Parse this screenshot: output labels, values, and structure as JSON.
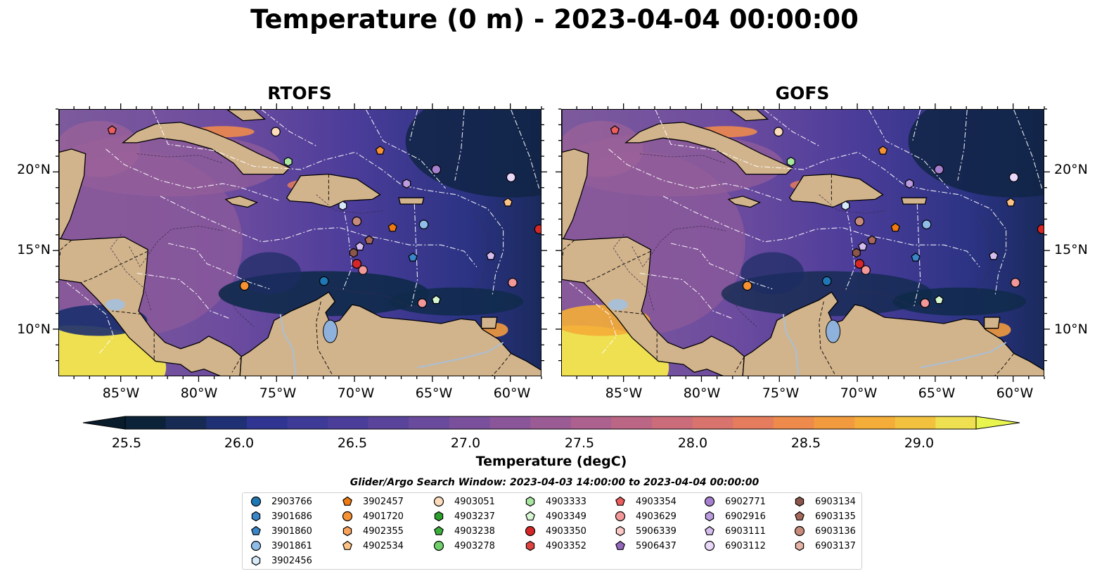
{
  "title": "Temperature (0 m) - 2023-04-04 00:00:00",
  "panels": [
    {
      "title": "RTOFS"
    },
    {
      "title": "GOFS"
    }
  ],
  "axes": {
    "x_ticks": [
      "85°W",
      "80°W",
      "75°W",
      "70°W",
      "65°W",
      "60°W"
    ],
    "y_ticks": [
      "20°N",
      "15°N",
      "10°N"
    ],
    "lon_range": [
      -89,
      -58
    ],
    "lat_range": [
      7,
      24
    ]
  },
  "colorbar": {
    "label": "Temperature (degC)",
    "ticks": [
      "25.5",
      "26.0",
      "26.5",
      "27.0",
      "27.5",
      "28.0",
      "28.5",
      "29.0"
    ],
    "range": [
      25.25,
      29.25
    ],
    "extend": "both",
    "colors": [
      "#0b2238",
      "#172a53",
      "#1f3075",
      "#2f3590",
      "#3d3a98",
      "#4b3e9a",
      "#5a449b",
      "#6a4a9c",
      "#7a509c",
      "#8b5599",
      "#9b5b95",
      "#ac618f",
      "#bc6686",
      "#cb6c7b",
      "#d9736d",
      "#e47c5d",
      "#ed8a4c",
      "#f29b3e",
      "#f4ad38",
      "#f2c23f",
      "#eee050"
    ],
    "under_color": "#081c2c",
    "over_color": "#e8f54f"
  },
  "search_window": "Glider/Argo Search Window: 2023-04-03 14:00:00 to 2023-04-04 00:00:00",
  "legend": {
    "entries": [
      {
        "label": "2903766",
        "color": "#1f77b4",
        "marker": "circle"
      },
      {
        "label": "3901686",
        "color": "#3a86c8",
        "marker": "hexagon"
      },
      {
        "label": "3901860",
        "color": "#3a86c8",
        "marker": "pentagon"
      },
      {
        "label": "3901861",
        "color": "#8fbde8",
        "marker": "circle"
      },
      {
        "label": "3902456",
        "color": "#d6eafc",
        "marker": "hexagon"
      },
      {
        "label": "3902457",
        "color": "#f07a10",
        "marker": "pentagon"
      },
      {
        "label": "4901720",
        "color": "#f79232",
        "marker": "circle"
      },
      {
        "label": "4902355",
        "color": "#f9a25a",
        "marker": "hexagon"
      },
      {
        "label": "4902534",
        "color": "#fcc285",
        "marker": "pentagon"
      },
      {
        "label": "4903051",
        "color": "#fddcbc",
        "marker": "circle"
      },
      {
        "label": "4903237",
        "color": "#2ca02c",
        "marker": "hexagon"
      },
      {
        "label": "4903238",
        "color": "#3cae3c",
        "marker": "pentagon"
      },
      {
        "label": "4903278",
        "color": "#6fcf6a",
        "marker": "circle"
      },
      {
        "label": "4903333",
        "color": "#a8e6a0",
        "marker": "hexagon"
      },
      {
        "label": "4903349",
        "color": "#d7f7d2",
        "marker": "pentagon"
      },
      {
        "label": "4903350",
        "color": "#d62728",
        "marker": "circle"
      },
      {
        "label": "4903352",
        "color": "#e0433f",
        "marker": "hexagon"
      },
      {
        "label": "4903354",
        "color": "#ec5d5e",
        "marker": "pentagon"
      },
      {
        "label": "4903629",
        "color": "#f29899",
        "marker": "circle"
      },
      {
        "label": "5906339",
        "color": "#fbc9c6",
        "marker": "hexagon"
      },
      {
        "label": "5906437",
        "color": "#9467bd",
        "marker": "pentagon"
      },
      {
        "label": "6902771",
        "color": "#a77fd0",
        "marker": "circle"
      },
      {
        "label": "6902916",
        "color": "#bc9ce0",
        "marker": "hexagon"
      },
      {
        "label": "6903111",
        "color": "#d5bdf0",
        "marker": "pentagon"
      },
      {
        "label": "6903112",
        "color": "#ead8fb",
        "marker": "circle"
      },
      {
        "label": "6903134",
        "color": "#8c564b",
        "marker": "hexagon"
      },
      {
        "label": "6903135",
        "color": "#a6685a",
        "marker": "pentagon"
      },
      {
        "label": "6903136",
        "color": "#c78b7c",
        "marker": "circle"
      },
      {
        "label": "6903137",
        "color": "#e6b2a4",
        "marker": "hexagon"
      }
    ]
  },
  "map_markers": [
    {
      "lon": -85.6,
      "lat": 22.7,
      "color": "#ec5d5e",
      "marker": "pentagon"
    },
    {
      "lon": -75.1,
      "lat": 22.6,
      "color": "#fddcbc",
      "marker": "circle"
    },
    {
      "lon": -74.3,
      "lat": 20.7,
      "color": "#a8e6a0",
      "marker": "hexagon"
    },
    {
      "lon": -68.4,
      "lat": 21.4,
      "color": "#f79232",
      "marker": "pentagon"
    },
    {
      "lon": -64.8,
      "lat": 20.2,
      "color": "#a77fd0",
      "marker": "circle"
    },
    {
      "lon": -66.7,
      "lat": 19.3,
      "color": "#bc9ce0",
      "marker": "hexagon"
    },
    {
      "lon": -60.0,
      "lat": 19.7,
      "color": "#ead8fb",
      "marker": "circle"
    },
    {
      "lon": -60.2,
      "lat": 18.1,
      "color": "#fcc285",
      "marker": "pentagon"
    },
    {
      "lon": -70.8,
      "lat": 17.9,
      "color": "#d6eafc",
      "marker": "hexagon"
    },
    {
      "lon": -69.9,
      "lat": 16.9,
      "color": "#c78b7c",
      "marker": "circle"
    },
    {
      "lon": -67.6,
      "lat": 16.5,
      "color": "#f07a10",
      "marker": "pentagon"
    },
    {
      "lon": -65.6,
      "lat": 16.7,
      "color": "#8fbde8",
      "marker": "circle"
    },
    {
      "lon": -58.2,
      "lat": 16.4,
      "color": "#d62728",
      "marker": "circle"
    },
    {
      "lon": -69.1,
      "lat": 15.7,
      "color": "#a6685a",
      "marker": "pentagon"
    },
    {
      "lon": -69.7,
      "lat": 15.3,
      "color": "#d5bdf0",
      "marker": "pentagon"
    },
    {
      "lon": -70.1,
      "lat": 14.9,
      "color": "#8c564b",
      "marker": "hexagon"
    },
    {
      "lon": -66.3,
      "lat": 14.6,
      "color": "#3a86c8",
      "marker": "pentagon"
    },
    {
      "lon": -61.3,
      "lat": 14.7,
      "color": "#d5bdf0",
      "marker": "pentagon"
    },
    {
      "lon": -69.9,
      "lat": 14.2,
      "color": "#d62728",
      "marker": "circle"
    },
    {
      "lon": -69.5,
      "lat": 13.8,
      "color": "#f29899",
      "marker": "circle"
    },
    {
      "lon": -72.0,
      "lat": 13.1,
      "color": "#1f77b4",
      "marker": "circle"
    },
    {
      "lon": -77.1,
      "lat": 12.8,
      "color": "#f79232",
      "marker": "circle"
    },
    {
      "lon": -59.9,
      "lat": 13.0,
      "color": "#f29899",
      "marker": "circle"
    },
    {
      "lon": -64.8,
      "lat": 11.9,
      "color": "#d7f7d2",
      "marker": "pentagon"
    },
    {
      "lon": -65.7,
      "lat": 11.7,
      "color": "#f29899",
      "marker": "circle"
    }
  ]
}
